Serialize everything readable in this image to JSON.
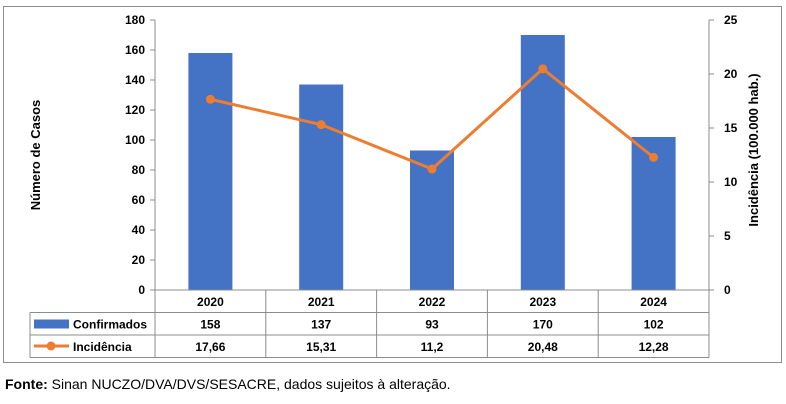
{
  "chart_data": {
    "type": "bar",
    "title": "",
    "categories": [
      "2020",
      "2021",
      "2022",
      "2023",
      "2024"
    ],
    "series": [
      {
        "name": "Confirmados",
        "kind": "bar",
        "axis": "left",
        "color": "#4472C4",
        "values": [
          158,
          137,
          93,
          170,
          102
        ],
        "labels": [
          "158",
          "137",
          "93",
          "170",
          "102"
        ]
      },
      {
        "name": "Incidência",
        "kind": "line",
        "axis": "right",
        "color": "#ED7D31",
        "values": [
          17.66,
          15.31,
          11.2,
          20.48,
          12.28
        ],
        "labels": [
          "17,66",
          "15,31",
          "11,2",
          "20,48",
          "12,28"
        ]
      }
    ],
    "ylabel": "Número de Casos",
    "y2label": "Incidência (100.000 hab.)",
    "ylim": [
      0,
      180
    ],
    "y2lim": [
      0,
      25
    ],
    "yticks": [
      0,
      20,
      40,
      60,
      80,
      100,
      120,
      140,
      160,
      180
    ],
    "y2ticks": [
      0,
      5,
      10,
      15,
      20,
      25
    ],
    "grid": false,
    "legend": "data-table"
  },
  "footer": {
    "label": "Fonte:",
    "text": " Sinan NUCZO/DVA/DVS/SESACRE, dados sujeitos à alteração."
  }
}
